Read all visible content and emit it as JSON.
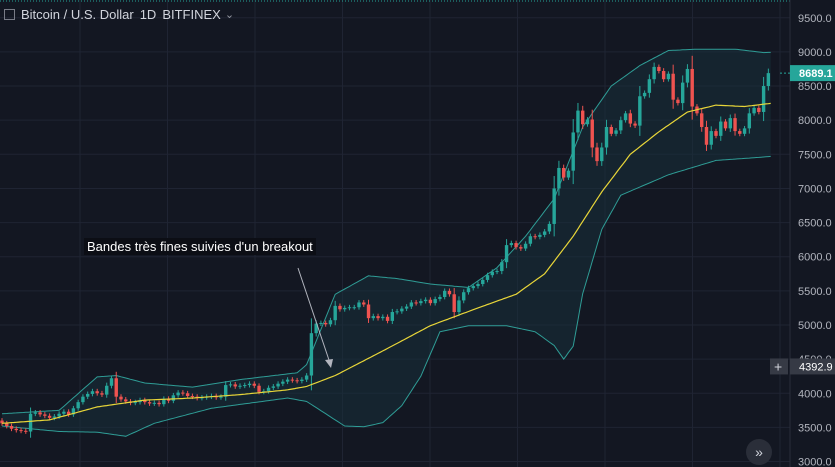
{
  "header": {
    "symbol": "Bitcoin / U.S. Dollar",
    "interval": "1D",
    "exchange": "BITFINEX",
    "chevron": "chevron-down-icon"
  },
  "annotation": "Bandes très fines suivies d'un breakout",
  "price_axis": {
    "ticks": [
      "9500.0",
      "9000.0",
      "8500.0",
      "8000.0",
      "7500.0",
      "7000.0",
      "6500.0",
      "6000.0",
      "5500.0",
      "5000.0",
      "4500.0",
      "4000.0",
      "3500.0",
      "3000.0"
    ],
    "last_price_label": "8689.1",
    "crosshair_label": "4392.9",
    "crosshair_icon": "plus-icon"
  },
  "scroll_button_icon": "double-chevron-right-icon",
  "colors": {
    "background": "#131722",
    "grid": "#1f2433",
    "up": "#26a69a",
    "down": "#ef5350",
    "sma": "#e8d639",
    "bands": "#2f9d96",
    "band_fill": "#18303a",
    "last_price_bg": "#26a69a"
  },
  "chart_data": {
    "type": "candlestick",
    "ylim": [
      2920,
      9760
    ],
    "y_ticks": [
      9500,
      9000,
      8500,
      8000,
      7500,
      7000,
      6500,
      6000,
      5500,
      5000,
      4500,
      4000,
      3500,
      3000
    ],
    "last_price": 8689.1,
    "crosshair_price": 4392.9,
    "indicators": [
      "Bollinger Bands",
      "SMA (middle band)"
    ],
    "closes": [
      3560,
      3520,
      3480,
      3460,
      3450,
      3440,
      3700,
      3720,
      3690,
      3670,
      3640,
      3660,
      3700,
      3730,
      3690,
      3780,
      3870,
      3950,
      3990,
      4030,
      4000,
      3980,
      4110,
      4220,
      3950,
      3910,
      3880,
      3860,
      3870,
      3900,
      3870,
      3850,
      3860,
      3840,
      3920,
      3890,
      3970,
      4010,
      4000,
      3960,
      3950,
      3930,
      3940,
      3950,
      3960,
      3940,
      3950,
      4120,
      4130,
      4100,
      4110,
      4120,
      4140,
      4110,
      4020,
      4030,
      4080,
      4100,
      4140,
      4170,
      4200,
      4190,
      4180,
      4200,
      4260,
      4880,
      5020,
      5030,
      5010,
      5070,
      5280,
      5230,
      5250,
      5260,
      5260,
      5330,
      5300,
      5100,
      5130,
      5100,
      5120,
      5060,
      5190,
      5200,
      5240,
      5270,
      5330,
      5320,
      5350,
      5370,
      5320,
      5380,
      5410,
      5500,
      5450,
      5190,
      5360,
      5480,
      5540,
      5570,
      5600,
      5660,
      5730,
      5780,
      5790,
      5920,
      6170,
      6200,
      6140,
      6120,
      6190,
      6300,
      6290,
      6320,
      6370,
      6480,
      7000,
      7300,
      7160,
      7260,
      7820,
      8140,
      7940,
      8010,
      7600,
      7400,
      7600,
      7900,
      7800,
      7850,
      8000,
      8100,
      7950,
      7920,
      8350,
      8400,
      8600,
      8780,
      8720,
      8600,
      8680,
      8300,
      8250,
      8550,
      8750,
      8200,
      8100,
      7900,
      7640,
      7840,
      7770,
      7980,
      7880,
      8030,
      7840,
      7800,
      7880,
      8100,
      8180,
      8120,
      8500,
      8689
    ],
    "bollinger": {
      "upper_points": [
        [
          0,
          3700
        ],
        [
          12,
          3750
        ],
        [
          20,
          4240
        ],
        [
          24,
          4260
        ],
        [
          30,
          4150
        ],
        [
          40,
          4090
        ],
        [
          50,
          4200
        ],
        [
          62,
          4300
        ],
        [
          64,
          4420
        ],
        [
          70,
          5450
        ],
        [
          77,
          5720
        ],
        [
          83,
          5680
        ],
        [
          90,
          5600
        ],
        [
          98,
          5550
        ],
        [
          104,
          5840
        ],
        [
          110,
          6300
        ],
        [
          116,
          6850
        ],
        [
          122,
          7900
        ],
        [
          128,
          8500
        ],
        [
          134,
          8800
        ],
        [
          140,
          9020
        ],
        [
          146,
          9040
        ],
        [
          154,
          9040
        ],
        [
          160,
          8990
        ],
        [
          165,
          9000
        ]
      ],
      "lower_points": [
        [
          0,
          3520
        ],
        [
          12,
          3440
        ],
        [
          20,
          3430
        ],
        [
          26,
          3370
        ],
        [
          32,
          3560
        ],
        [
          44,
          3780
        ],
        [
          60,
          3930
        ],
        [
          64,
          3880
        ],
        [
          68,
          3700
        ],
        [
          72,
          3520
        ],
        [
          76,
          3510
        ],
        [
          80,
          3570
        ],
        [
          84,
          3820
        ],
        [
          88,
          4250
        ],
        [
          92,
          4900
        ],
        [
          98,
          4990
        ],
        [
          106,
          4990
        ],
        [
          112,
          4900
        ],
        [
          116,
          4700
        ],
        [
          118,
          4500
        ],
        [
          120,
          4690
        ],
        [
          122,
          5460
        ],
        [
          126,
          6400
        ],
        [
          130,
          6900
        ],
        [
          140,
          7200
        ],
        [
          150,
          7410
        ],
        [
          160,
          7460
        ],
        [
          165,
          7490
        ]
      ],
      "middle_points": [
        [
          0,
          3560
        ],
        [
          10,
          3610
        ],
        [
          20,
          3800
        ],
        [
          30,
          3900
        ],
        [
          40,
          3930
        ],
        [
          50,
          3980
        ],
        [
          60,
          4050
        ],
        [
          64,
          4100
        ],
        [
          70,
          4260
        ],
        [
          80,
          4620
        ],
        [
          90,
          4990
        ],
        [
          100,
          5250
        ],
        [
          108,
          5450
        ],
        [
          114,
          5750
        ],
        [
          120,
          6300
        ],
        [
          126,
          6950
        ],
        [
          132,
          7500
        ],
        [
          138,
          7830
        ],
        [
          144,
          8120
        ],
        [
          150,
          8220
        ],
        [
          156,
          8200
        ],
        [
          162,
          8250
        ],
        [
          165,
          8280
        ]
      ]
    }
  }
}
